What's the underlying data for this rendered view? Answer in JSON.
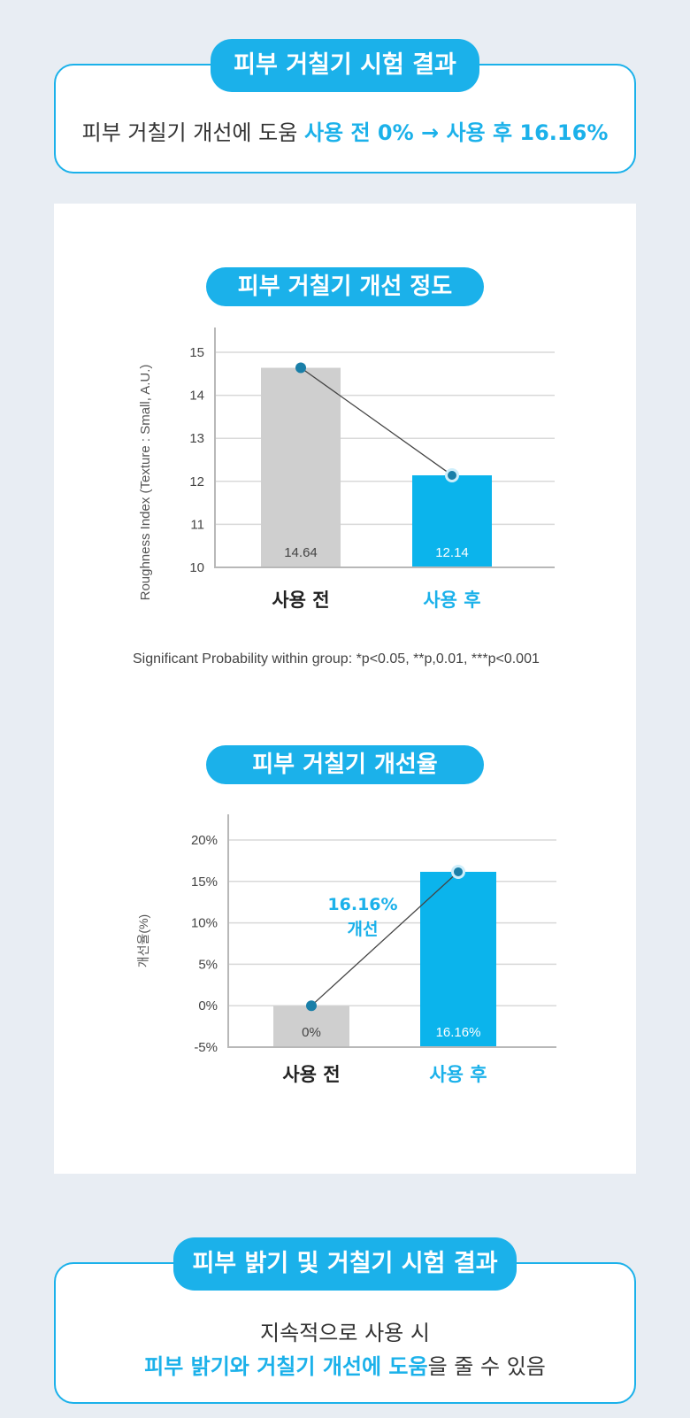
{
  "top_result": {
    "title": "피부 거칠기 시험 결과",
    "line_prefix": "피부 거칠기 개선에 도움 ",
    "line_highlight": "사용 전 0% → 사용 후 16.16%"
  },
  "chart1_title": "피부 거칠기 개선 정도",
  "chart2_title": "피부 거칠기 개선율",
  "significance_note": "Significant Probability within group: *p<0.05, **p,0.01, ***p<0.001",
  "chart_data": [
    {
      "type": "bar",
      "categories": [
        "사용 전",
        "사용 후"
      ],
      "values": [
        14.64,
        12.14
      ],
      "data_labels": [
        "14.64",
        "12.14"
      ],
      "ylabel": "Roughness Index (Texture : Small, A.U.)",
      "ylim": [
        10,
        15
      ],
      "yticks": [
        "10",
        "11",
        "12",
        "13",
        "14",
        "15"
      ],
      "colors": [
        "#cfcfcf",
        "#0bb4ec"
      ],
      "grid": true,
      "trend_line": true
    },
    {
      "type": "bar",
      "categories": [
        "사용 전",
        "사용 후"
      ],
      "values": [
        0,
        16.16
      ],
      "data_labels": [
        "0%",
        "16.16%"
      ],
      "ylabel": "개선율(%)",
      "ylim": [
        -5,
        20
      ],
      "yticks": [
        "-5%",
        "0%",
        "5%",
        "10%",
        "15%",
        "20%"
      ],
      "colors": [
        "#cfcfcf",
        "#0bb4ec"
      ],
      "grid": true,
      "trend_line": true,
      "annotation": [
        "16.16%",
        "개선"
      ]
    }
  ],
  "bottom_result": {
    "title": "피부 밝기 및 거칠기 시험 결과",
    "line1": "지속적으로 사용 시",
    "line2_highlight": "피부 밝기와 거칠기 개선에 도움",
    "line2_suffix": "을 줄 수 있음"
  }
}
